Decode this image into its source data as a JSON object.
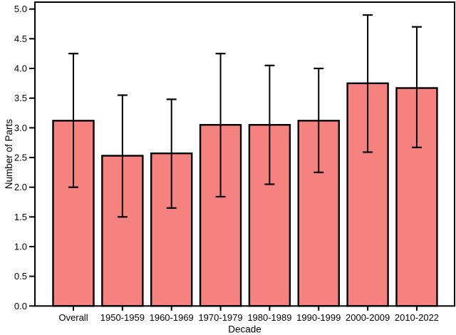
{
  "figure": {
    "background": "#ffffff"
  },
  "chart_data": {
    "type": "bar",
    "title": "",
    "xlabel": "Decade",
    "ylabel": "Number of Parts",
    "categories": [
      "Overall",
      "1950-1959",
      "1960-1969",
      "1970-1979",
      "1980-1989",
      "1990-1999",
      "2000-2009",
      "2010-2022"
    ],
    "values": [
      3.12,
      2.53,
      2.57,
      3.05,
      3.05,
      3.12,
      3.75,
      3.67
    ],
    "error_upper": [
      4.25,
      3.55,
      3.48,
      4.25,
      4.05,
      4.0,
      4.9,
      4.7
    ],
    "error_lower": [
      2.0,
      1.5,
      1.65,
      1.84,
      2.05,
      2.25,
      2.59,
      2.67
    ],
    "ylim": [
      0,
      5
    ],
    "ytick_step": 0.5,
    "ytick_labels": [
      "0.0",
      "0.5",
      "1.0",
      "1.5",
      "2.0",
      "2.5",
      "3.0",
      "3.5",
      "4.0",
      "4.5",
      "5.0"
    ],
    "grid": false,
    "legend": "none",
    "bar_fill": "#F5827E",
    "bar_edge": "#000000",
    "error_color": "#000000",
    "frame_color": "#000000"
  }
}
